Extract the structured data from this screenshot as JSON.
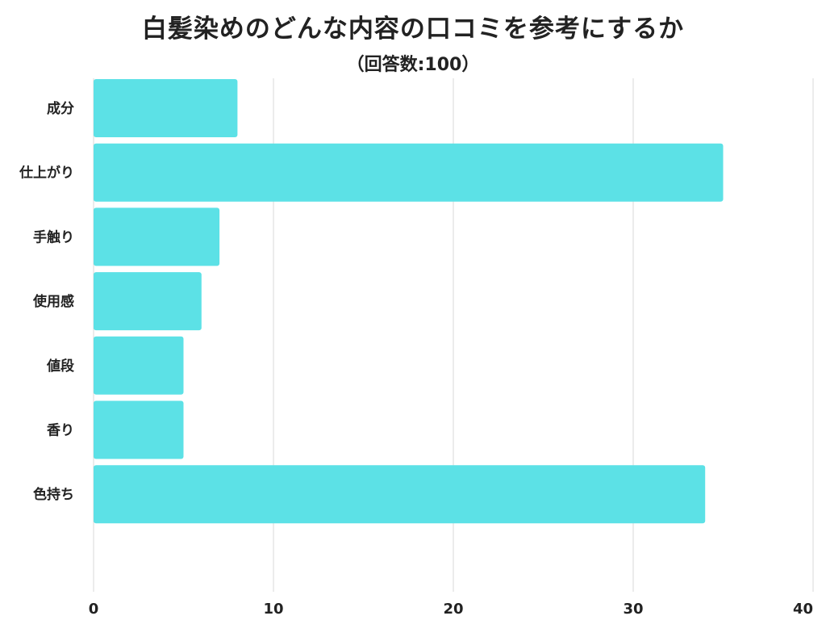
{
  "title": "白髪染めのどんな内容の口コミを参考にするか",
  "subtitle": "（回答数:100）",
  "colors": {
    "bar": "#5ce1e6",
    "grid": "#d9d9d9",
    "text": "#222222"
  },
  "chart_data": {
    "type": "bar",
    "orientation": "horizontal",
    "title": "白髪染めのどんな内容の口コミを参考にするか",
    "subtitle": "（回答数:100）",
    "categories": [
      "成分",
      "仕上がり",
      "手触り",
      "使用感",
      "値段",
      "香り",
      "色持ち"
    ],
    "values": [
      8,
      35,
      7,
      6,
      5,
      5,
      34
    ],
    "xlim": [
      0,
      40
    ],
    "xticks": [
      0,
      10,
      20,
      30,
      40
    ],
    "grid": true,
    "legend": "none"
  }
}
